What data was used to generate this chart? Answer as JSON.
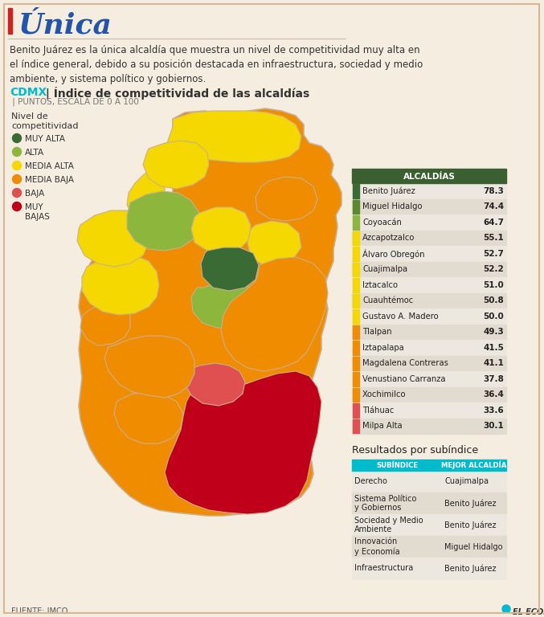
{
  "bg_color": "#f5ede0",
  "accent_color": "#00bbcc",
  "title_text": "Única",
  "title_color": "#2255aa",
  "subtitle": "Benito Juárez es la única alcaldía que muestra un nivel de competitividad muy alta en\nel índice general, debido a su posición destacada en infraestructura, sociedad y medio\nambiente, y sistema político y gobiernos.",
  "chart_title_cdmx": "CDMX",
  "chart_title_main": " | Índice de competitividad de las alcaldías",
  "chart_title_sub": " | PUNTOS, ESCALA DE 0 A 100",
  "legend_title": "Nivel de\ncompetitividad",
  "legend_items": [
    {
      "label": "MUY ALTA",
      "color": "#3a6b35"
    },
    {
      "label": "ALTA",
      "color": "#8db63c"
    },
    {
      "label": "MEDIA ALTA",
      "color": "#f5d800"
    },
    {
      "label": "MEDIA BAJA",
      "color": "#f08c00"
    },
    {
      "label": "BAJA",
      "color": "#e05050"
    },
    {
      "label": "MUY\nBAJAS",
      "color": "#c0001a"
    }
  ],
  "table_header": "ALCALDÍAS",
  "table_header_color": "#3a5f30",
  "rows": [
    {
      "name": "Benito Juárez",
      "value": "78.3",
      "color": "#3a6b35"
    },
    {
      "name": "Miguel Hidalgo",
      "value": "74.4",
      "color": "#5a8a2a"
    },
    {
      "name": "Coyoacán",
      "value": "64.7",
      "color": "#8db63c"
    },
    {
      "name": "Azcapotzalco",
      "value": "55.1",
      "color": "#f5d800"
    },
    {
      "name": "Álvaro Obregón",
      "value": "52.7",
      "color": "#f5d800"
    },
    {
      "name": "Cuajimalpa",
      "value": "52.2",
      "color": "#f5d800"
    },
    {
      "name": "Iztacalco",
      "value": "51.0",
      "color": "#f5d800"
    },
    {
      "name": "Cuauhtémoc",
      "value": "50.8",
      "color": "#f5d800"
    },
    {
      "name": "Gustavo A. Madero",
      "value": "50.0",
      "color": "#f5d800"
    },
    {
      "name": "Tlalpan",
      "value": "49.3",
      "color": "#f08c00"
    },
    {
      "name": "Iztapalapa",
      "value": "41.5",
      "color": "#f08c00"
    },
    {
      "name": "Magdalena Contreras",
      "value": "41.1",
      "color": "#f08c00"
    },
    {
      "name": "Venustiano Carranza",
      "value": "37.8",
      "color": "#f08c00"
    },
    {
      "name": "Xochimilco",
      "value": "36.4",
      "color": "#f08c00"
    },
    {
      "name": "Tláhuac",
      "value": "33.6",
      "color": "#e05050"
    },
    {
      "name": "Milpa Alta",
      "value": "30.1",
      "color": "#e05050"
    }
  ],
  "subindex_title": "Resultados por subíndice",
  "subindex_header_color": "#00bbcc",
  "subindex_rows": [
    {
      "subindex": "Derecho",
      "alcaldia": "Cuajimalpa"
    },
    {
      "subindex": "Sistema Político\ny Gobiernos",
      "alcaldia": "Benito Juárez"
    },
    {
      "subindex": "Sociedad y Medio\nAmbiente",
      "alcaldia": "Benito Juárez"
    },
    {
      "subindex": "Innovación\ny Economía",
      "alcaldia": "Miguel Hidalgo"
    },
    {
      "subindex": "Infraestructura",
      "alcaldia": "Benito Juárez"
    }
  ],
  "source_text": "FUENTE: IMCO",
  "logo_text": "EL ECONOMISTA"
}
